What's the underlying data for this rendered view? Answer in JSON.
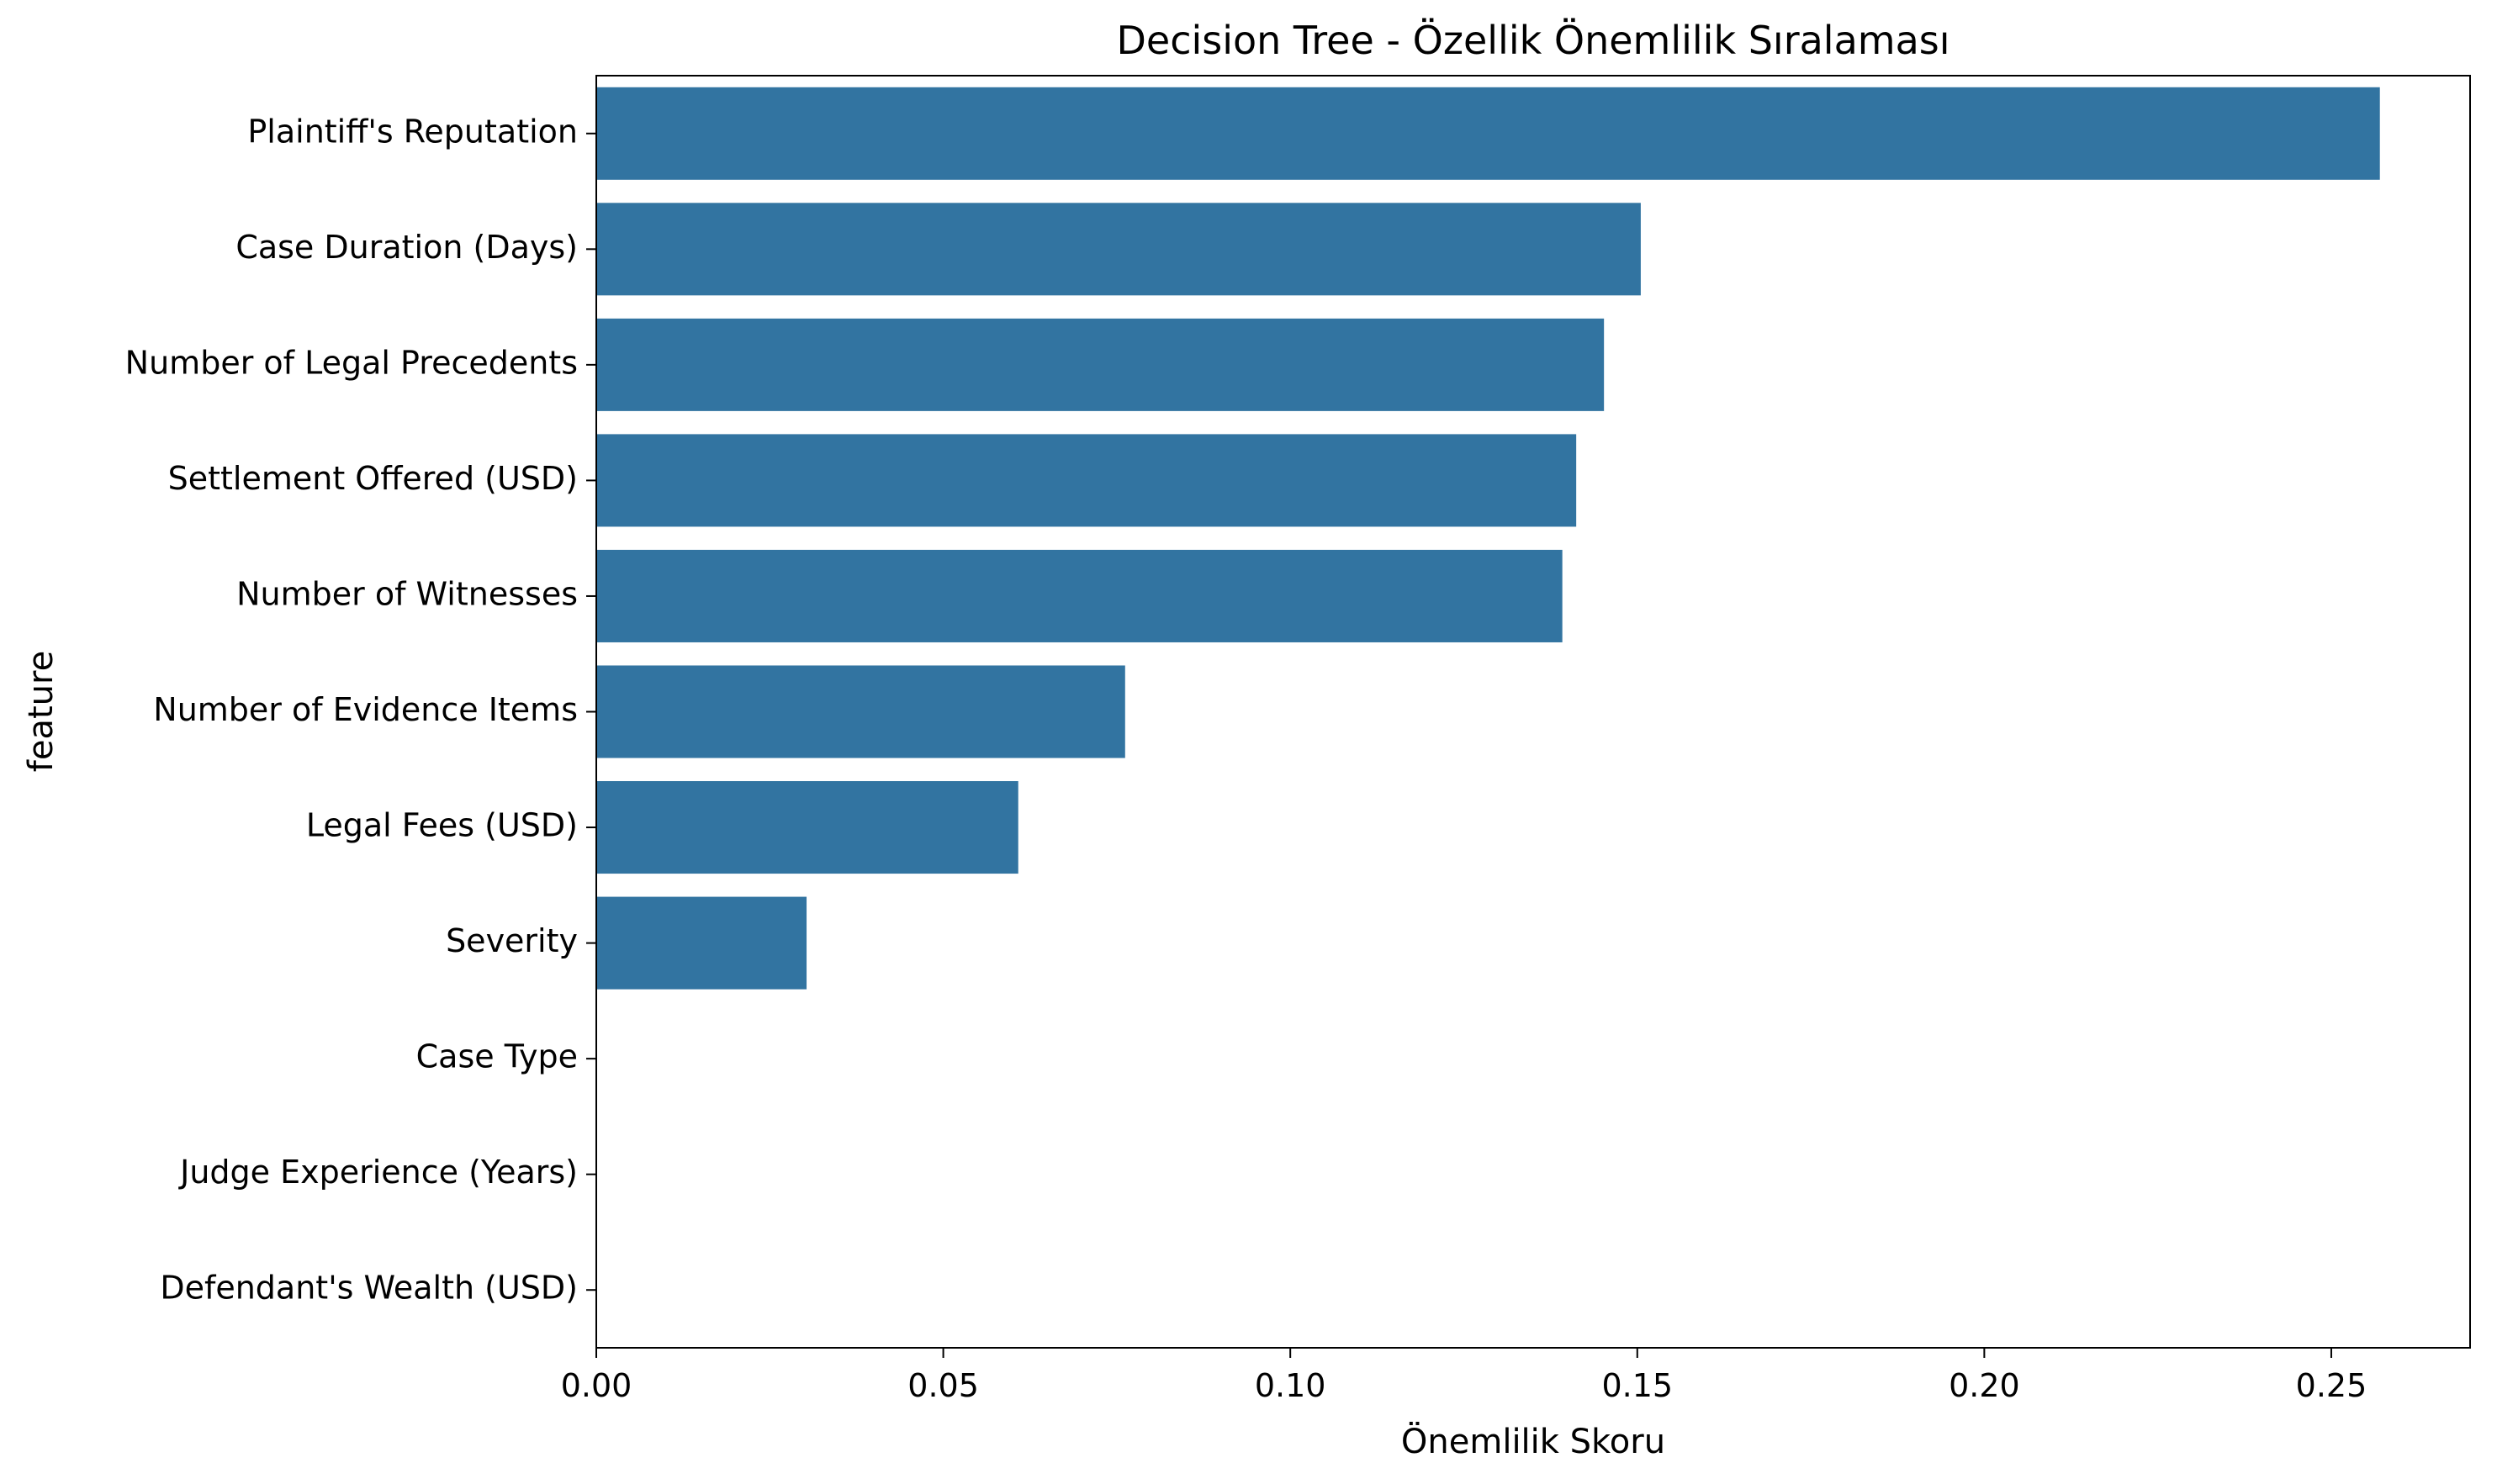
{
  "chart_data": {
    "type": "bar",
    "orientation": "horizontal",
    "title": "Decision Tree - Özellik Önemlilik Sıralaması",
    "xlabel": "Önemlilik Skoru",
    "ylabel": "feature",
    "categories": [
      "Plaintiff's Reputation",
      "Case Duration (Days)",
      "Number of Legal Precedents",
      "Settlement Offered (USD)",
      "Number of Witnesses",
      "Number of Evidence Items",
      "Legal Fees (USD)",
      "Severity",
      "Case Type",
      "Judge Experience (Years)",
      "Defendant's Wealth (USD)"
    ],
    "values": [
      0.257,
      0.1505,
      0.1452,
      0.1412,
      0.1392,
      0.0762,
      0.0608,
      0.0303,
      0.0,
      0.0,
      0.0
    ],
    "xlim": [
      0,
      0.27
    ],
    "xticks": [
      "0.00",
      "0.05",
      "0.10",
      "0.15",
      "0.20",
      "0.25"
    ],
    "bar_color": "#3274a1",
    "grid": false,
    "legend": "none"
  }
}
